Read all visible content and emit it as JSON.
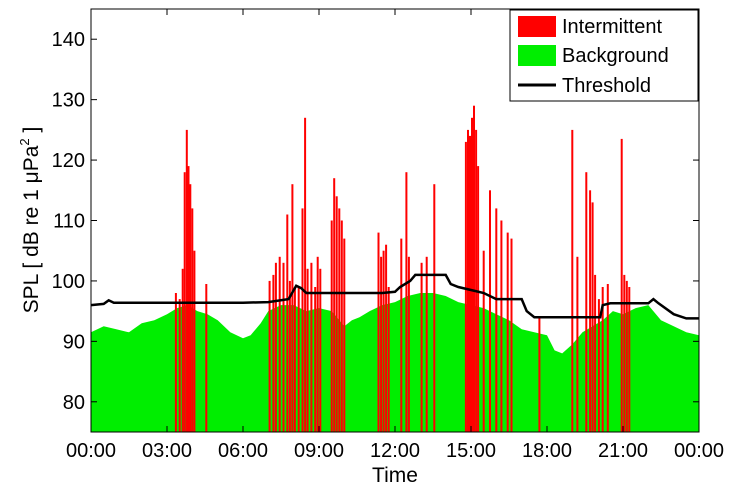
{
  "chart_data": {
    "type": "bar",
    "xlabel": "Time",
    "ylabel": "SPL [ dB re 1 μPa² ]",
    "ylabel_parts": {
      "main": "SPL [ dB re 1 μPa",
      "sup": "2",
      "end": " ]"
    },
    "xlim": [
      0,
      24
    ],
    "ylim": [
      75,
      145
    ],
    "x_ticks": [
      "00:00",
      "03:00",
      "06:00",
      "09:00",
      "12:00",
      "15:00",
      "18:00",
      "21:00",
      "00:00"
    ],
    "y_ticks": [
      "80",
      "90",
      "100",
      "110",
      "120",
      "130",
      "140"
    ],
    "grid": false,
    "legend_position": "top-right",
    "colors": {
      "intermittent": "#ff0000",
      "background": "#00ee00",
      "threshold": "#000000"
    },
    "series": [
      {
        "name": "Intermittent",
        "kind": "bar",
        "bar_width_hours": 0.05,
        "points": [
          [
            3.35,
            98
          ],
          [
            3.5,
            97
          ],
          [
            3.62,
            102
          ],
          [
            3.7,
            118
          ],
          [
            3.78,
            125
          ],
          [
            3.85,
            119
          ],
          [
            3.92,
            116
          ],
          [
            4.0,
            112
          ],
          [
            4.08,
            105
          ],
          [
            4.55,
            99.5
          ],
          [
            7.05,
            100
          ],
          [
            7.2,
            101
          ],
          [
            7.3,
            103
          ],
          [
            7.45,
            104
          ],
          [
            7.6,
            103
          ],
          [
            7.75,
            111
          ],
          [
            7.85,
            100
          ],
          [
            7.95,
            116
          ],
          [
            8.05,
            99
          ],
          [
            8.2,
            99
          ],
          [
            8.35,
            112
          ],
          [
            8.45,
            127
          ],
          [
            8.55,
            102
          ],
          [
            8.7,
            103
          ],
          [
            8.85,
            99
          ],
          [
            8.95,
            104
          ],
          [
            9.05,
            102
          ],
          [
            9.5,
            110
          ],
          [
            9.6,
            117
          ],
          [
            9.7,
            114
          ],
          [
            9.8,
            112
          ],
          [
            9.9,
            110
          ],
          [
            10.0,
            107
          ],
          [
            11.35,
            108
          ],
          [
            11.45,
            104
          ],
          [
            11.55,
            105
          ],
          [
            11.65,
            106
          ],
          [
            11.75,
            99
          ],
          [
            12.25,
            107
          ],
          [
            12.45,
            118
          ],
          [
            12.55,
            104
          ],
          [
            13.05,
            103
          ],
          [
            13.25,
            104
          ],
          [
            13.55,
            116
          ],
          [
            14.8,
            123
          ],
          [
            14.88,
            125
          ],
          [
            14.96,
            124
          ],
          [
            15.04,
            127
          ],
          [
            15.12,
            129
          ],
          [
            15.2,
            125
          ],
          [
            15.28,
            119
          ],
          [
            15.5,
            105
          ],
          [
            15.75,
            115
          ],
          [
            16.0,
            112
          ],
          [
            16.2,
            110
          ],
          [
            16.45,
            108
          ],
          [
            16.6,
            107
          ],
          [
            17.7,
            94
          ],
          [
            19.0,
            125
          ],
          [
            19.2,
            104
          ],
          [
            19.55,
            118
          ],
          [
            19.7,
            115
          ],
          [
            19.8,
            113
          ],
          [
            19.9,
            101
          ],
          [
            20.05,
            97
          ],
          [
            20.2,
            99
          ],
          [
            20.4,
            99.5
          ],
          [
            20.95,
            123.5
          ],
          [
            21.05,
            101
          ],
          [
            21.15,
            100
          ],
          [
            21.25,
            99
          ]
        ]
      },
      {
        "name": "Background",
        "kind": "area",
        "points": [
          [
            0,
            91.5
          ],
          [
            0.5,
            92.5
          ],
          [
            1.0,
            92
          ],
          [
            1.5,
            91.5
          ],
          [
            2.0,
            93
          ],
          [
            2.5,
            93.5
          ],
          [
            3.0,
            94.5
          ],
          [
            3.4,
            95.5
          ],
          [
            3.8,
            96
          ],
          [
            4.2,
            95
          ],
          [
            4.6,
            94.5
          ],
          [
            5.0,
            93.5
          ],
          [
            5.5,
            91.5
          ],
          [
            6.0,
            90.5
          ],
          [
            6.3,
            91
          ],
          [
            6.7,
            93
          ],
          [
            7.0,
            95
          ],
          [
            7.5,
            96
          ],
          [
            8.0,
            96
          ],
          [
            8.5,
            95
          ],
          [
            9.0,
            95.5
          ],
          [
            9.5,
            95
          ],
          [
            10.0,
            92.5
          ],
          [
            10.3,
            93.5
          ],
          [
            10.6,
            94
          ],
          [
            11.0,
            95
          ],
          [
            11.5,
            96
          ],
          [
            12.0,
            96.5
          ],
          [
            12.5,
            97.5
          ],
          [
            13.0,
            98
          ],
          [
            13.5,
            98
          ],
          [
            14.0,
            97.5
          ],
          [
            14.5,
            96.5
          ],
          [
            15.0,
            96
          ],
          [
            15.5,
            95.5
          ],
          [
            16.0,
            94.5
          ],
          [
            16.5,
            93.5
          ],
          [
            17.0,
            92
          ],
          [
            17.5,
            91.5
          ],
          [
            18.0,
            91
          ],
          [
            18.3,
            88.5
          ],
          [
            18.6,
            88
          ],
          [
            19.0,
            89.5
          ],
          [
            19.4,
            91.5
          ],
          [
            19.8,
            92.5
          ],
          [
            20.2,
            93.5
          ],
          [
            20.6,
            95
          ],
          [
            21.0,
            94.5
          ],
          [
            21.5,
            95.5
          ],
          [
            22.0,
            96
          ],
          [
            22.5,
            93.5
          ],
          [
            23.0,
            92.5
          ],
          [
            23.5,
            91.5
          ],
          [
            24.0,
            91
          ]
        ]
      },
      {
        "name": "Threshold",
        "kind": "line",
        "points": [
          [
            0,
            96
          ],
          [
            0.5,
            96.2
          ],
          [
            0.7,
            96.8
          ],
          [
            0.9,
            96.4
          ],
          [
            2.0,
            96.4
          ],
          [
            3.0,
            96.4
          ],
          [
            4.0,
            96.4
          ],
          [
            6.0,
            96.4
          ],
          [
            7.0,
            96.5
          ],
          [
            7.8,
            97
          ],
          [
            8.1,
            99.2
          ],
          [
            8.3,
            98.8
          ],
          [
            8.5,
            98
          ],
          [
            9.5,
            98
          ],
          [
            11.5,
            98
          ],
          [
            12.0,
            98.2
          ],
          [
            12.2,
            99
          ],
          [
            12.4,
            99.5
          ],
          [
            12.6,
            100
          ],
          [
            12.8,
            101
          ],
          [
            14.0,
            101
          ],
          [
            14.2,
            99.5
          ],
          [
            14.5,
            99
          ],
          [
            15.0,
            98.5
          ],
          [
            15.5,
            98
          ],
          [
            16.0,
            97
          ],
          [
            17.0,
            97
          ],
          [
            17.2,
            95
          ],
          [
            17.5,
            94
          ],
          [
            18.0,
            94
          ],
          [
            19.5,
            94
          ],
          [
            20.1,
            94
          ],
          [
            20.2,
            96
          ],
          [
            20.5,
            96.3
          ],
          [
            22.0,
            96.3
          ],
          [
            22.2,
            97
          ],
          [
            22.4,
            96.3
          ],
          [
            23.0,
            94.5
          ],
          [
            23.5,
            93.8
          ],
          [
            24.0,
            93.8
          ]
        ]
      }
    ]
  }
}
